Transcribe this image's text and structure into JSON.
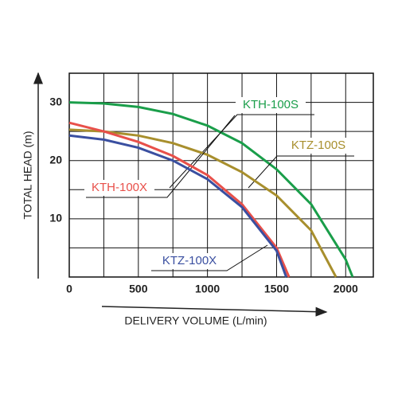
{
  "chart_data": {
    "type": "line",
    "x_label": "DELIVERY VOLUME (L/min)",
    "y_label": "TOTAL HEAD (m)",
    "xlim": [
      0,
      2200
    ],
    "ylim": [
      0,
      35
    ],
    "xticks": [
      0,
      500,
      1000,
      1500,
      2000
    ],
    "yticks": [
      10,
      20,
      30
    ],
    "grid": true,
    "series": [
      {
        "name": "KTH-100S",
        "color": "#1a9e4a",
        "x": [
          0,
          250,
          500,
          750,
          1000,
          1250,
          1500,
          1750,
          2000,
          2050
        ],
        "values": [
          30,
          29.8,
          29.2,
          28,
          26,
          23,
          18.5,
          12.5,
          3,
          0
        ]
      },
      {
        "name": "KTZ-100S",
        "color": "#a88f2d",
        "x": [
          0,
          250,
          500,
          750,
          1000,
          1250,
          1500,
          1750,
          1930
        ],
        "values": [
          25.3,
          25,
          24.3,
          23,
          21,
          18,
          14,
          8,
          0
        ]
      },
      {
        "name": "KTH-100X",
        "color": "#e8504a",
        "x": [
          0,
          250,
          500,
          750,
          1000,
          1250,
          1500,
          1590
        ],
        "values": [
          26.5,
          25,
          23.2,
          20.8,
          17.5,
          12.5,
          5,
          0
        ]
      },
      {
        "name": "KTZ-100X",
        "color": "#3a4fa0",
        "x": [
          0,
          250,
          500,
          750,
          1000,
          1250,
          1500,
          1570
        ],
        "values": [
          24.3,
          23.6,
          22.2,
          20,
          16.8,
          12,
          4.5,
          0
        ]
      }
    ]
  }
}
